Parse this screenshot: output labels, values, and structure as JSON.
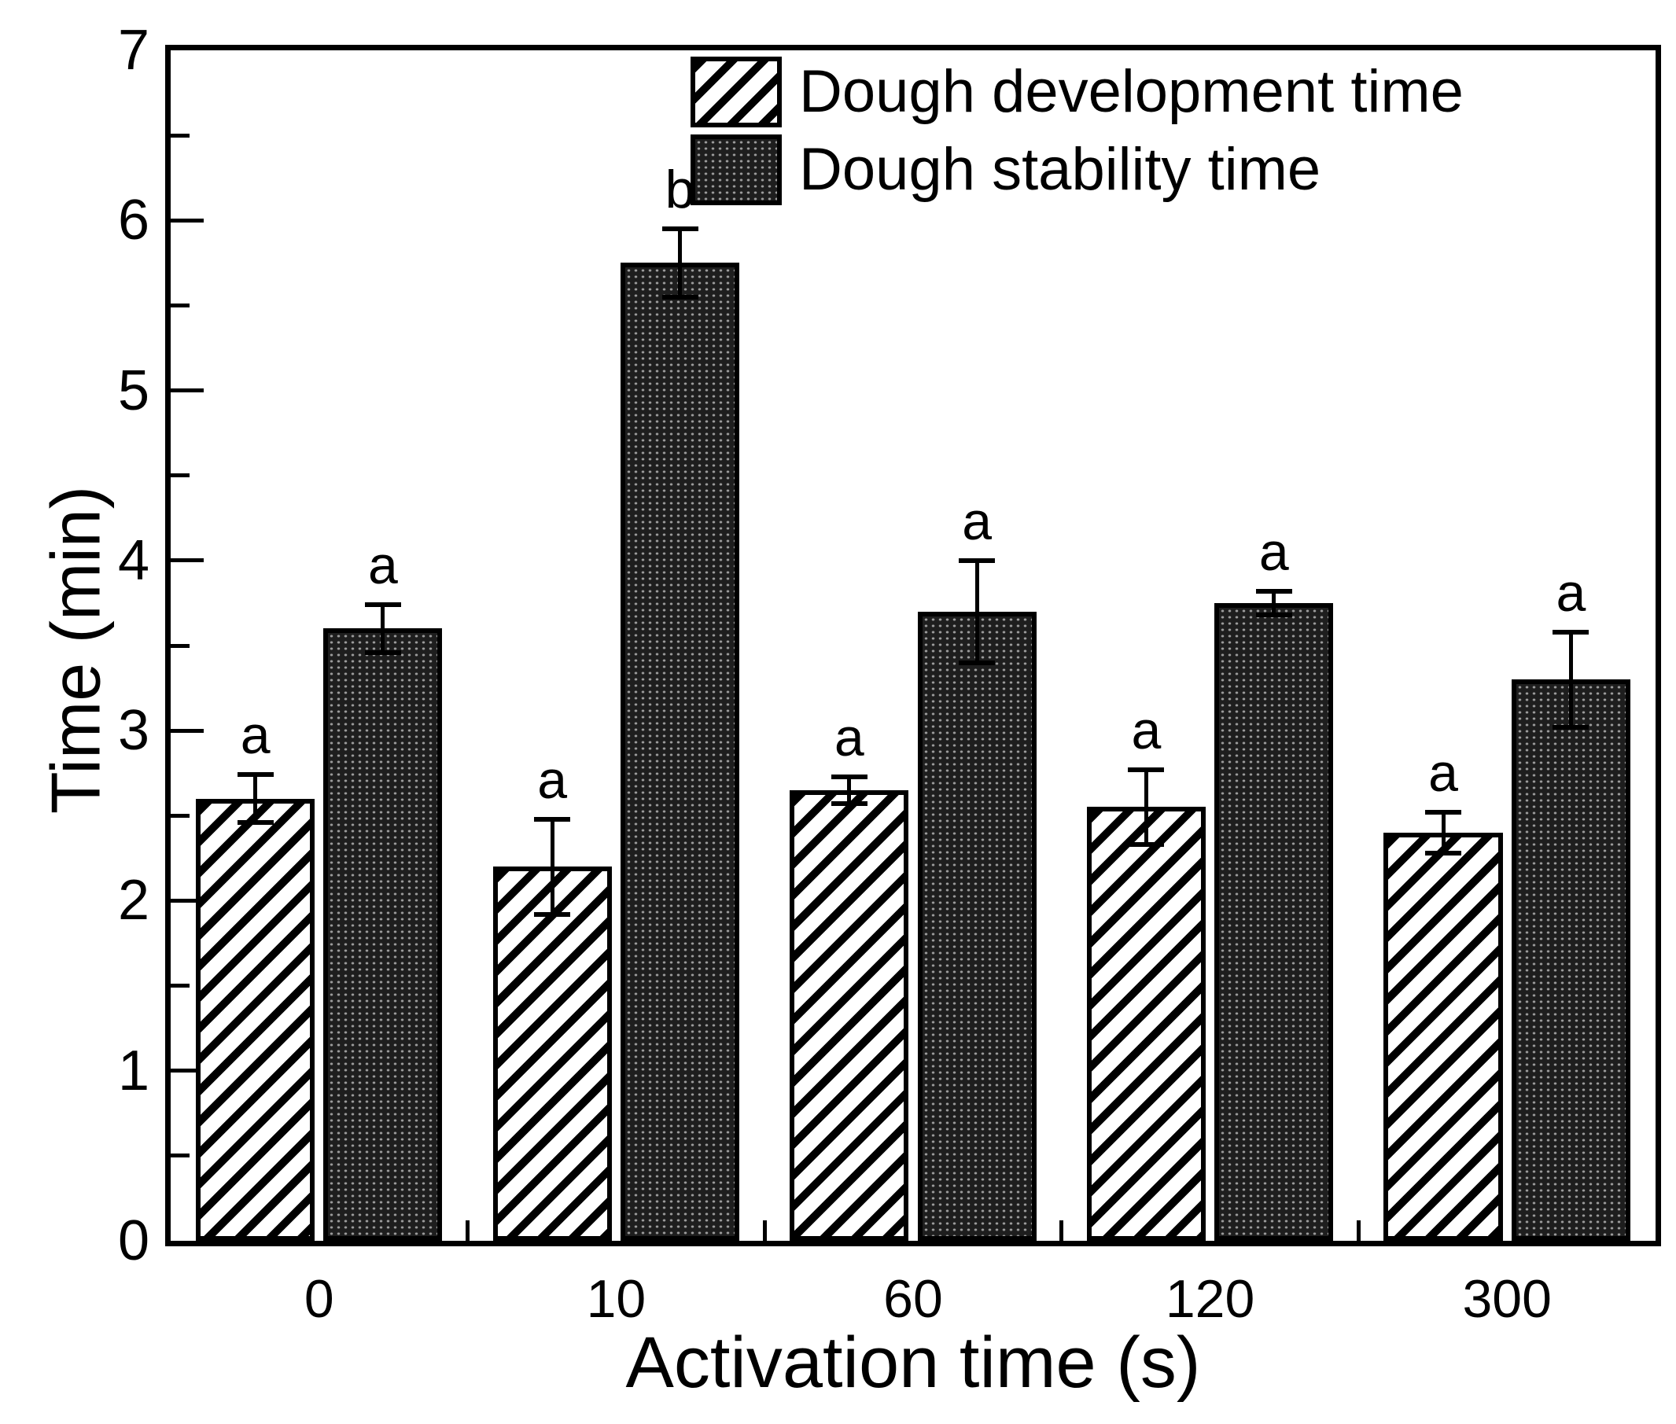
{
  "chart_data": {
    "type": "bar",
    "title": "",
    "xlabel": "Activation time (s)",
    "ylabel": "Time (min)",
    "categories": [
      "0",
      "10",
      "60",
      "120",
      "300"
    ],
    "series": [
      {
        "name": "Dough development time",
        "pattern": "diagonal-hatch",
        "values": [
          2.6,
          2.2,
          2.65,
          2.55,
          2.4
        ],
        "errors": [
          0.14,
          0.28,
          0.08,
          0.22,
          0.12
        ],
        "letters": [
          "a",
          "a",
          "a",
          "a",
          "a"
        ]
      },
      {
        "name": "Dough stability time",
        "pattern": "dot-grid",
        "values": [
          3.6,
          5.75,
          3.7,
          3.75,
          3.3
        ],
        "errors": [
          0.14,
          0.2,
          0.3,
          0.07,
          0.28
        ],
        "letters": [
          "a",
          "b",
          "a",
          "a",
          "a"
        ]
      }
    ],
    "ylim": [
      0,
      7
    ],
    "yticks": [
      0,
      1,
      2,
      3,
      4,
      5,
      6,
      7
    ],
    "minor_ytick_step": 0.5,
    "grid": false,
    "legend_position": "top-right",
    "colors": {
      "bar_edge": "#000000",
      "stability_fill": "#1e1e1e",
      "development_fill": "#ffffff",
      "background": "#ffffff",
      "text": "#000000"
    }
  }
}
